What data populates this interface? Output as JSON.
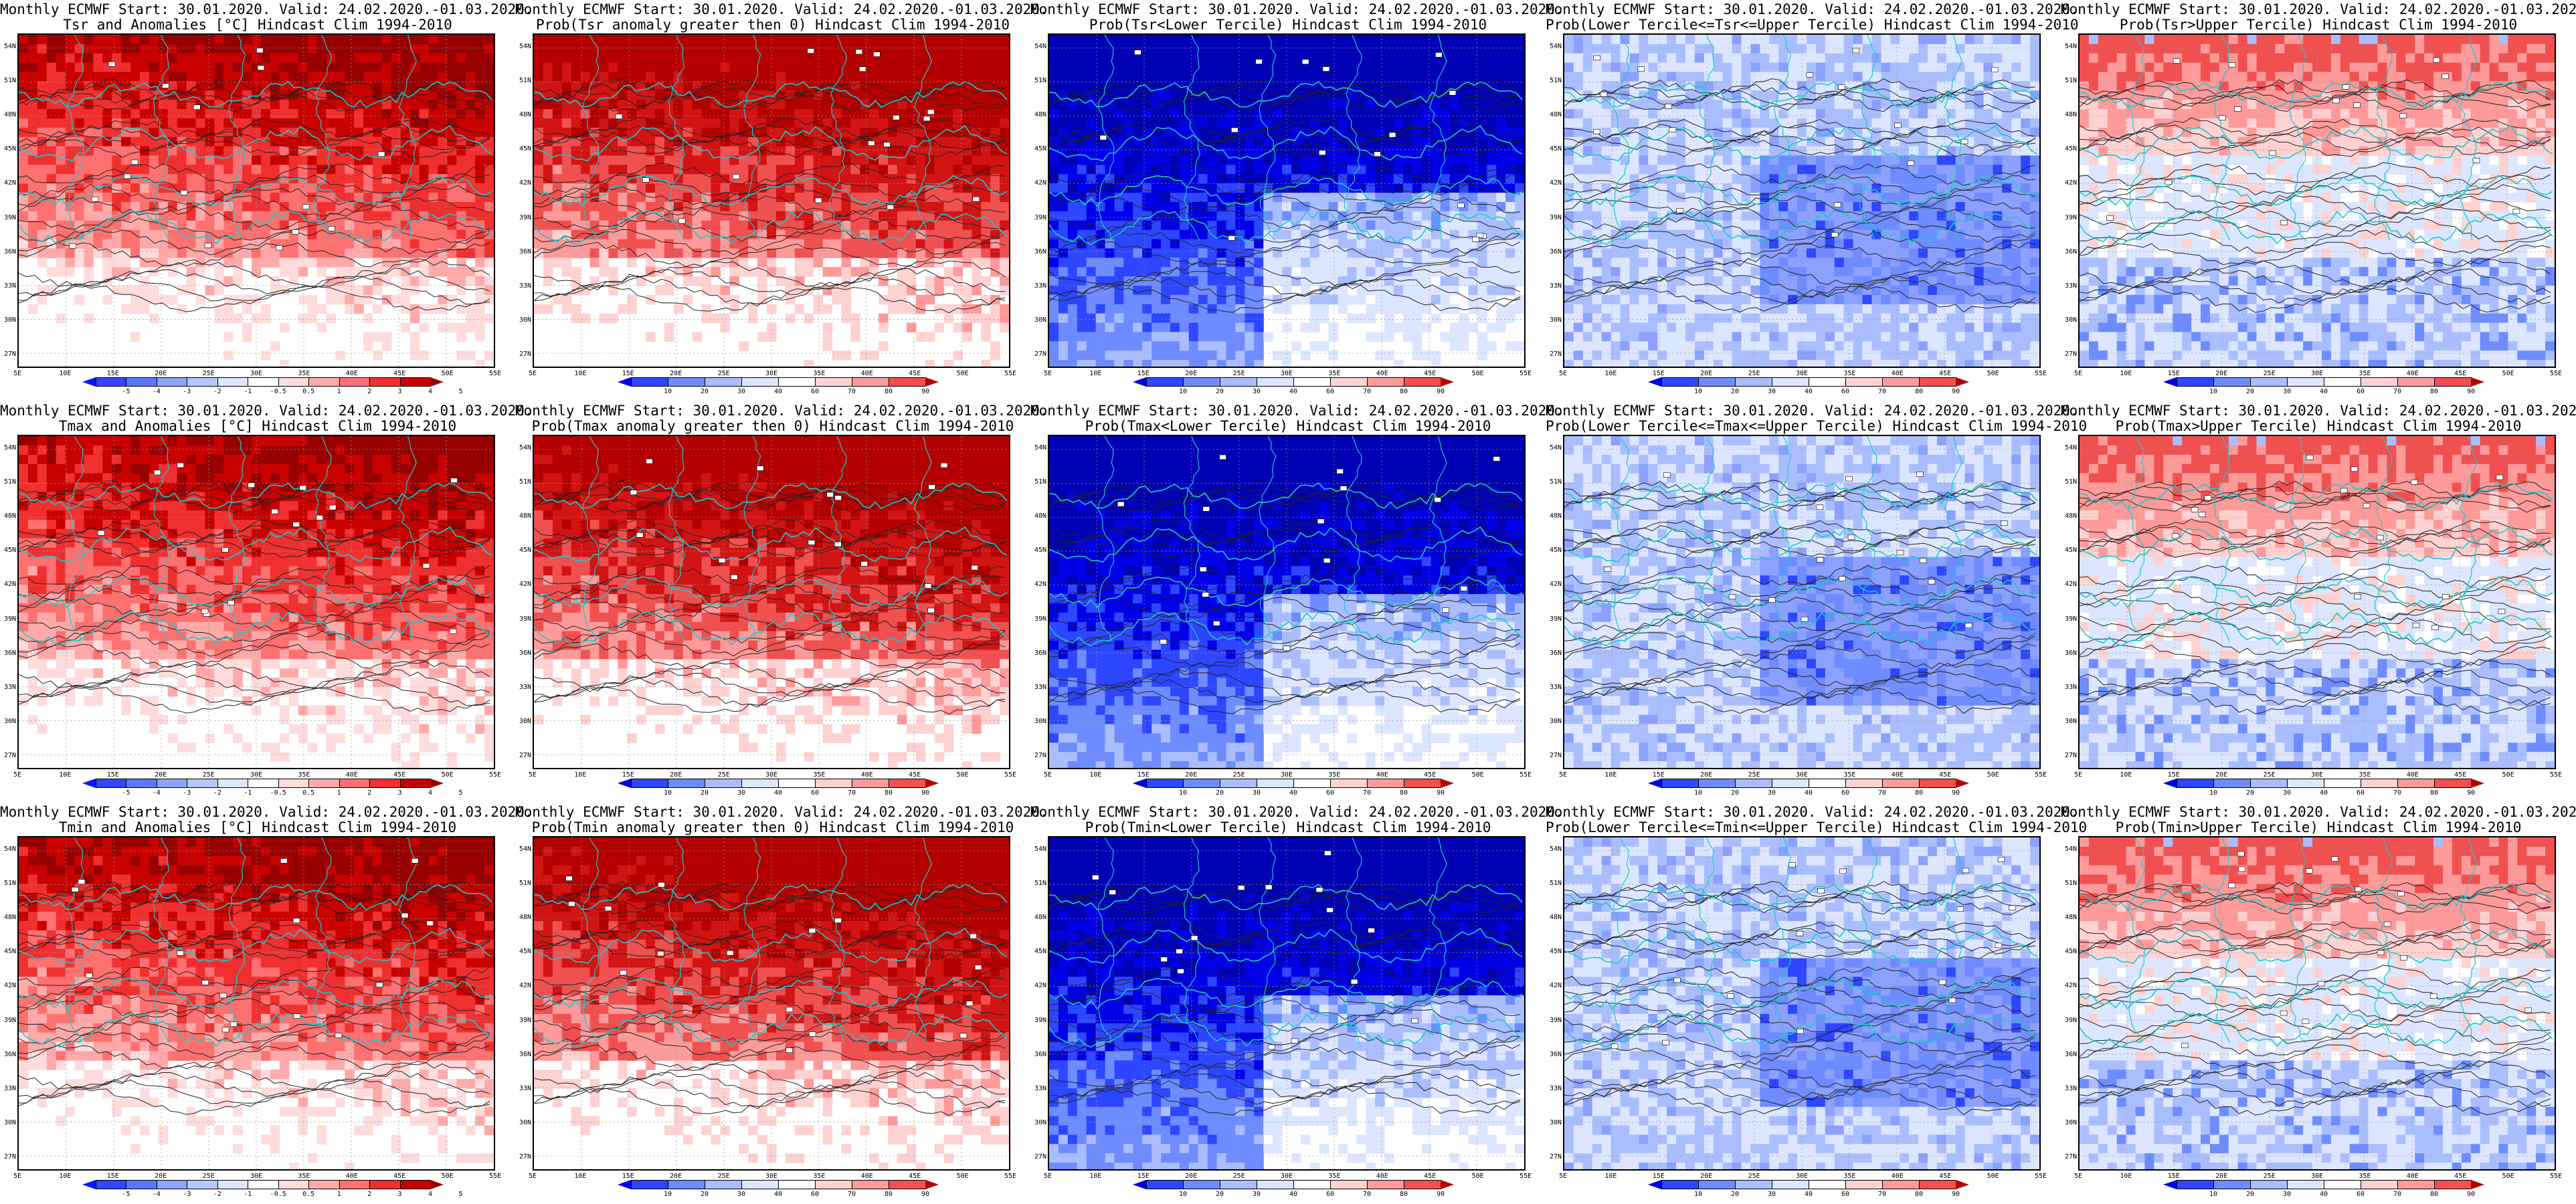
{
  "header_line": "Monthly ECMWF Start: 30.01.2020. Valid: 24.02.2020.-01.03.2020.",
  "lat_ticks": [
    "54N",
    "51N",
    "48N",
    "45N",
    "42N",
    "39N",
    "36N",
    "33N",
    "30N",
    "27N"
  ],
  "lon_ticks": [
    "5E",
    "10E",
    "15E",
    "20E",
    "25E",
    "30E",
    "35E",
    "40E",
    "45E",
    "50E",
    "55E"
  ],
  "colorbars": {
    "anomaly": {
      "ticks": [
        "-5",
        "-4",
        "-3",
        "-2",
        "-1",
        "-0.5",
        "0.5",
        "1",
        "2",
        "3",
        "4",
        "5"
      ],
      "colors": [
        "#0a14ff",
        "#3246ff",
        "#5a78ff",
        "#8ca5ff",
        "#b4c8ff",
        "#dce6ff",
        "#ffffff",
        "#ffdcdc",
        "#ffaaaa",
        "#ff7070",
        "#f03030",
        "#c80000",
        "#960000"
      ]
    },
    "probability": {
      "ticks": [
        "10",
        "20",
        "30",
        "40",
        "60",
        "70",
        "80",
        "90"
      ],
      "colors": [
        "#0000e6",
        "#2d46ff",
        "#6e8cff",
        "#aabeff",
        "#dce6ff",
        "#ffffff",
        "#ffd2d2",
        "#ff9a9a",
        "#f05050",
        "#b40000"
      ]
    }
  },
  "panels": [
    {
      "subtitle": "Tsr and Anomalies [°C] Hindcast Clim 1994-2010",
      "kind": "anomaly",
      "field": "warm",
      "colorbar": "anomaly"
    },
    {
      "subtitle": "Prob(Tsr anomaly greater then 0) Hindcast Clim 1994-2010",
      "kind": "prob_pos",
      "field": "red",
      "colorbar": "probability"
    },
    {
      "subtitle": "Prob(Tsr<Lower Tercile) Hindcast Clim 1994-2010",
      "kind": "prob_lower",
      "field": "deepblue",
      "colorbar": "probability"
    },
    {
      "subtitle": "Prob(Lower Tercile<=Tsr<=Upper Tercile) Hindcast Clim 1994-2010",
      "kind": "prob_middle",
      "field": "mixblue",
      "colorbar": "probability"
    },
    {
      "subtitle": "Prob(Tsr>Upper Tercile) Hindcast Clim 1994-2010",
      "kind": "prob_upper",
      "field": "lightred",
      "colorbar": "probability"
    },
    {
      "subtitle": "Tmax and Anomalies [°C] Hindcast Clim 1994-2010",
      "kind": "anomaly",
      "field": "warm",
      "colorbar": "anomaly"
    },
    {
      "subtitle": "Prob(Tmax anomaly greater then 0) Hindcast Clim 1994-2010",
      "kind": "prob_pos",
      "field": "red",
      "colorbar": "probability"
    },
    {
      "subtitle": "Prob(Tmax<Lower Tercile) Hindcast Clim 1994-2010",
      "kind": "prob_lower",
      "field": "deepblue",
      "colorbar": "probability"
    },
    {
      "subtitle": "Prob(Lower Tercile<=Tmax<=Upper Tercile) Hindcast Clim 1994-2010",
      "kind": "prob_middle",
      "field": "mixblue",
      "colorbar": "probability"
    },
    {
      "subtitle": "Prob(Tmax>Upper Tercile) Hindcast Clim 1994-2010",
      "kind": "prob_upper",
      "field": "lightred",
      "colorbar": "probability"
    },
    {
      "subtitle": "Tmin and Anomalies [°C] Hindcast Clim 1994-2010",
      "kind": "anomaly",
      "field": "warm",
      "colorbar": "anomaly"
    },
    {
      "subtitle": "Prob(Tmin anomaly greater then 0) Hindcast Clim 1994-2010",
      "kind": "prob_pos",
      "field": "red",
      "colorbar": "probability"
    },
    {
      "subtitle": "Prob(Tmin<Lower Tercile) Hindcast Clim 1994-2010",
      "kind": "prob_lower",
      "field": "deepblue",
      "colorbar": "probability"
    },
    {
      "subtitle": "Prob(Lower Tercile<=Tmin<=Upper Tercile) Hindcast Clim 1994-2010",
      "kind": "prob_middle",
      "field": "mixblue",
      "colorbar": "probability"
    },
    {
      "subtitle": "Prob(Tmin>Upper Tercile) Hindcast Clim 1994-2010",
      "kind": "prob_upper",
      "field": "lightred",
      "colorbar": "probability"
    }
  ],
  "colors": {
    "coastline": "#1ec8c8",
    "contour": "#222222",
    "frame": "#000000"
  }
}
